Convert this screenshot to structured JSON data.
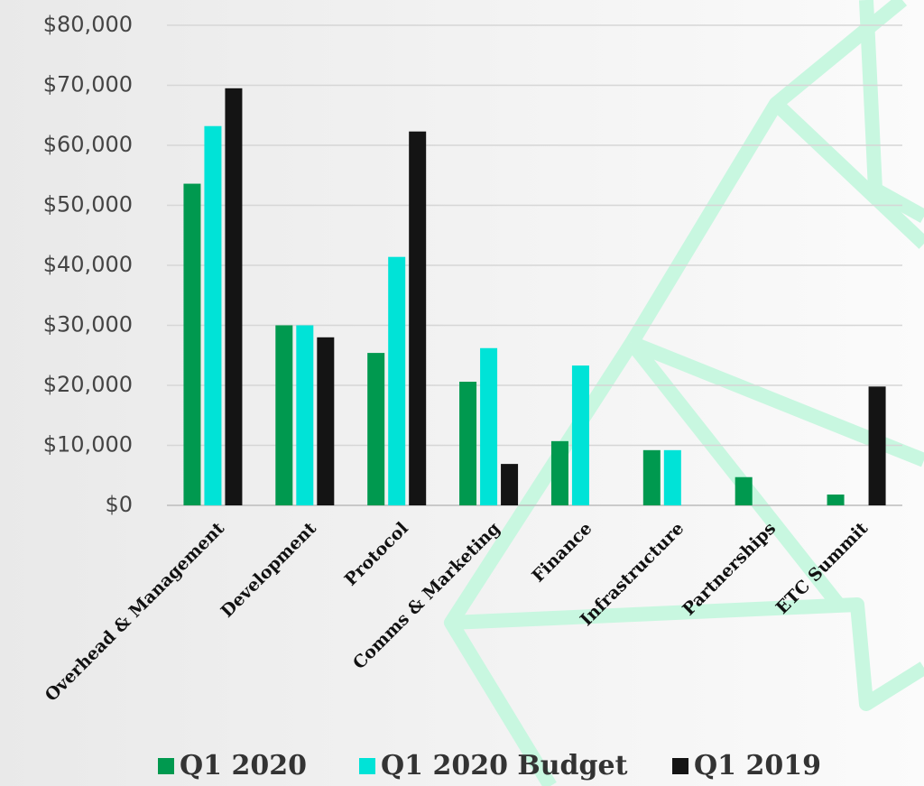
{
  "chart_data": {
    "type": "bar",
    "categories": [
      "Overhead & Management",
      "Development",
      "Protocol",
      "Comms & Marketing",
      "Finance",
      "Infrastructure",
      "Partnerships",
      "ETC Summit"
    ],
    "series": [
      {
        "name": "Q1 2020",
        "color": "#00994f",
        "values": [
          53600,
          30000,
          25400,
          20600,
          10700,
          9200,
          4700,
          1800
        ]
      },
      {
        "name": "Q1 2020 Budget",
        "color": "#00e3d7",
        "values": [
          63200,
          30000,
          41400,
          26200,
          23300,
          9200,
          null,
          null
        ]
      },
      {
        "name": "Q1 2019",
        "color": "#141414",
        "values": [
          69500,
          28000,
          62300,
          6900,
          null,
          null,
          null,
          19800
        ]
      }
    ],
    "ylim": [
      0,
      80000
    ],
    "yticks": [
      {
        "value": 0,
        "label": "$0"
      },
      {
        "value": 10000,
        "label": "$10,000"
      },
      {
        "value": 20000,
        "label": "$20,000"
      },
      {
        "value": 30000,
        "label": "$30,000"
      },
      {
        "value": 40000,
        "label": "$40,000"
      },
      {
        "value": 50000,
        "label": "$50,000"
      },
      {
        "value": 60000,
        "label": "$60,000"
      },
      {
        "value": 70000,
        "label": "$70,000"
      },
      {
        "value": 80000,
        "label": "$80,000"
      }
    ],
    "grid": true,
    "legend": "bottom"
  }
}
